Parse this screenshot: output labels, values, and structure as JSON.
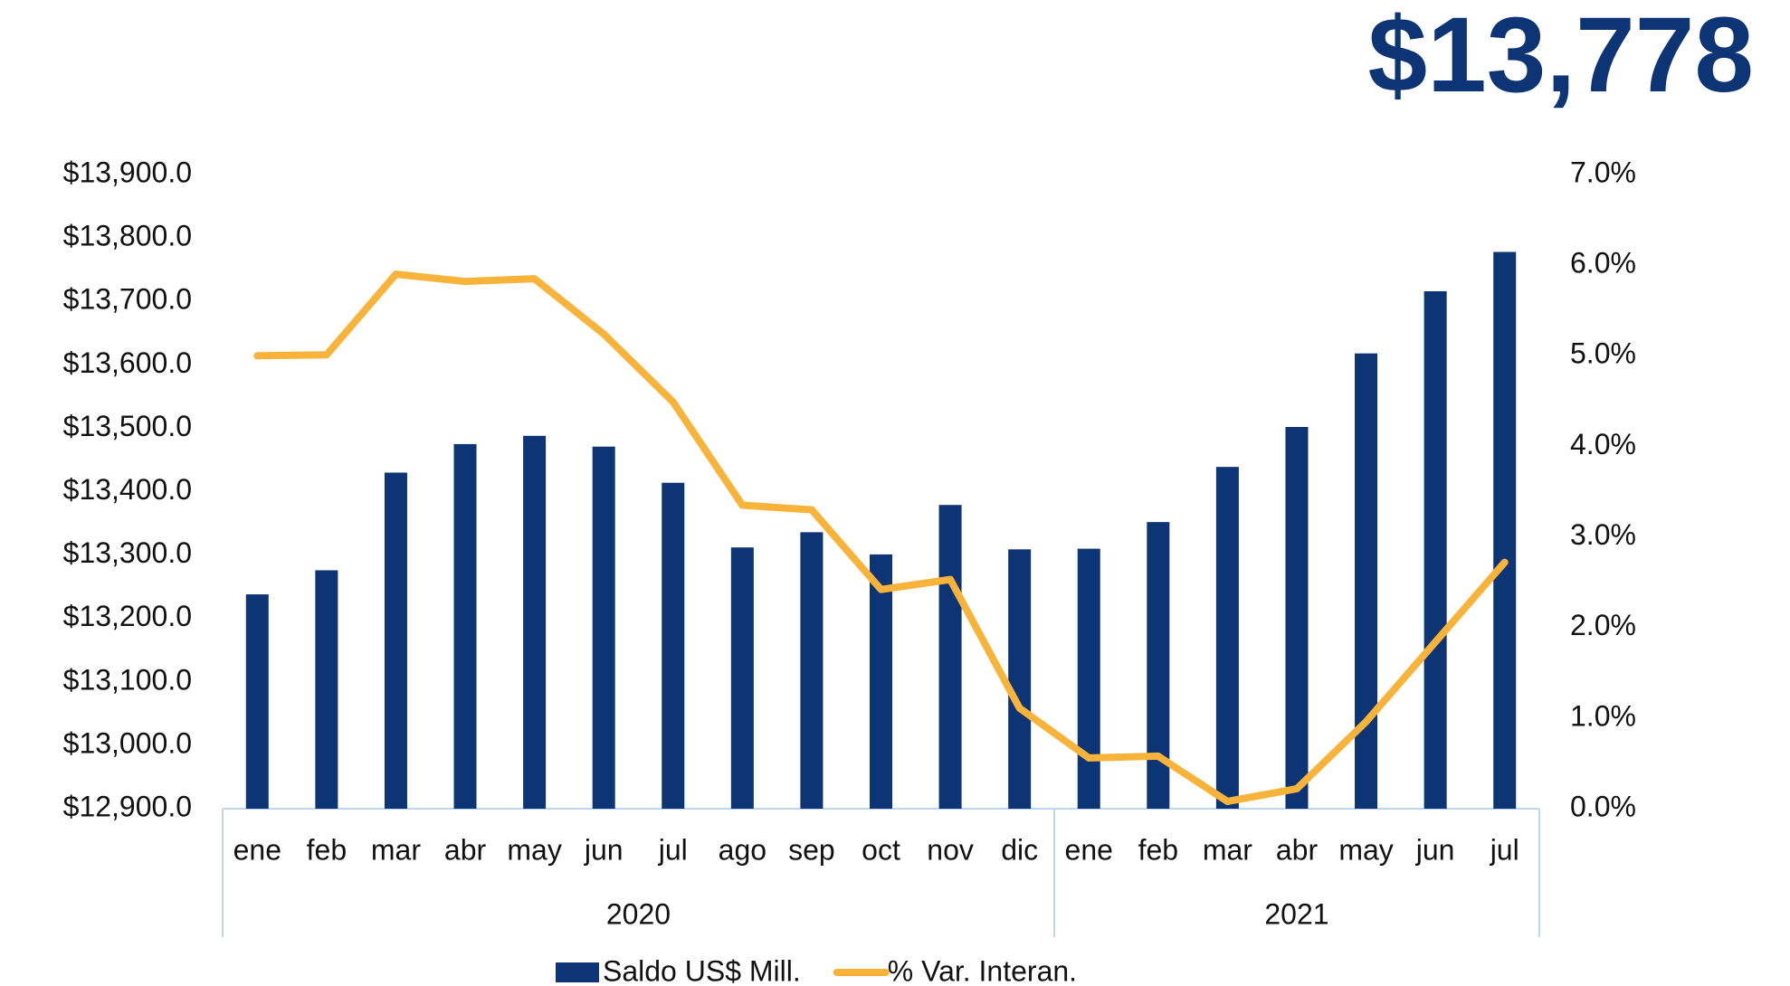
{
  "chart_data": {
    "type": "bar-line",
    "headline": "$13,778",
    "groups": [
      {
        "label": "2020",
        "categories": [
          "ene",
          "feb",
          "mar",
          "abr",
          "may",
          "jun",
          "jul",
          "ago",
          "sep",
          "oct",
          "nov",
          "dic"
        ]
      },
      {
        "label": "2021",
        "categories": [
          "ene",
          "feb",
          "mar",
          "abr",
          "may",
          "jun",
          "jul"
        ]
      }
    ],
    "series": [
      {
        "name": "Saldo US$ Mill.",
        "type": "bar",
        "color": "#0d3475",
        "axis": "y",
        "values": [
          13238,
          13276,
          13430,
          13475,
          13488,
          13471,
          13414,
          13312,
          13336,
          13301,
          13379,
          13309,
          13310,
          13352,
          13439,
          13502,
          13618,
          13716,
          13778
        ]
      },
      {
        "name": "% Var. Interan.",
        "type": "line",
        "color": "#f8b43a",
        "axis": "y2",
        "values": [
          5.0,
          5.01,
          5.9,
          5.82,
          5.85,
          5.24,
          4.49,
          3.35,
          3.3,
          2.42,
          2.53,
          1.11,
          0.56,
          0.58,
          0.08,
          0.22,
          0.96,
          1.84,
          2.72
        ]
      }
    ],
    "ylim": [
      12900,
      13900
    ],
    "yticks": [
      {
        "value": 12900,
        "label": "$12,900.0"
      },
      {
        "value": 13000,
        "label": "$13,000.0"
      },
      {
        "value": 13100,
        "label": "$13,100.0"
      },
      {
        "value": 13200,
        "label": "$13,200.0"
      },
      {
        "value": 13300,
        "label": "$13,300.0"
      },
      {
        "value": 13400,
        "label": "$13,400.0"
      },
      {
        "value": 13500,
        "label": "$13,500.0"
      },
      {
        "value": 13600,
        "label": "$13,600.0"
      },
      {
        "value": 13700,
        "label": "$13,700.0"
      },
      {
        "value": 13800,
        "label": "$13,800.0"
      },
      {
        "value": 13900,
        "label": "$13,900.0"
      }
    ],
    "y2lim": [
      0,
      7
    ],
    "y2ticks": [
      {
        "value": 0,
        "label": "0.0%"
      },
      {
        "value": 1,
        "label": "1.0%"
      },
      {
        "value": 2,
        "label": "2.0%"
      },
      {
        "value": 3,
        "label": "3.0%"
      },
      {
        "value": 4,
        "label": "4.0%"
      },
      {
        "value": 5,
        "label": "5.0%"
      },
      {
        "value": 6,
        "label": "6.0%"
      },
      {
        "value": 7,
        "label": "7.0%"
      }
    ],
    "grid": false,
    "legend": "bottom"
  }
}
